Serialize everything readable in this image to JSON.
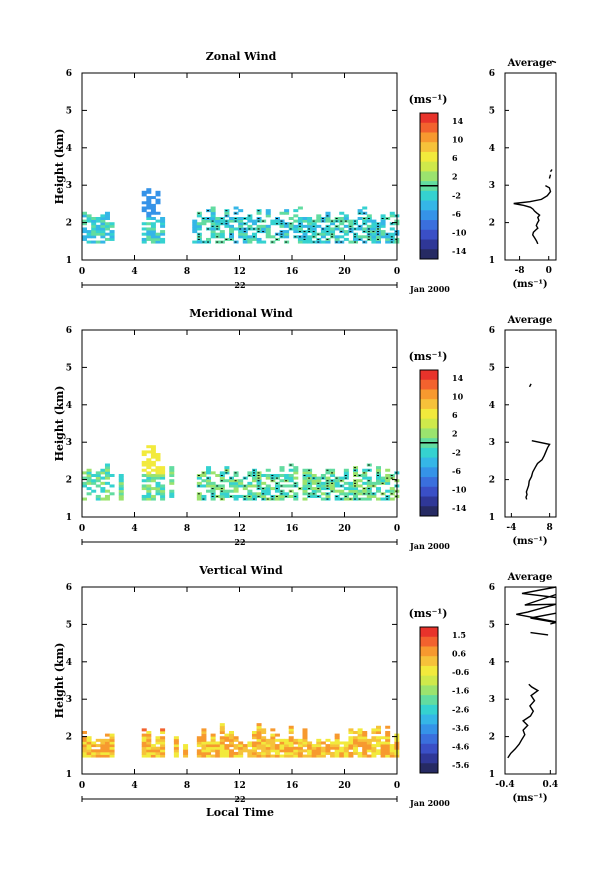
{
  "x_axis": {
    "ticks": [
      "0",
      "4",
      "8",
      "12",
      "16",
      "20",
      "0"
    ],
    "day_label": "22",
    "date_label": "Jan 2000",
    "xlabel": "Local Time"
  },
  "panels": [
    {
      "title": "Zonal Wind",
      "ylabel": "Height (km)",
      "y_ticks": [
        "1",
        "2",
        "3",
        "4",
        "5",
        "6"
      ],
      "colorbar": {
        "unit": "(ms⁻¹)",
        "labels": [
          "14",
          "10",
          "6",
          "2",
          "-2",
          "-6",
          "-10",
          "-14"
        ],
        "colors": [
          "#e8332b",
          "#f2622e",
          "#f7992f",
          "#f6c23a",
          "#f2ea3c",
          "#cfe94b",
          "#9be36e",
          "#62dca0",
          "#35d2d0",
          "#35b6e7",
          "#3593e8",
          "#3a6fdd",
          "#3a4fc6",
          "#2f3797",
          "#262a63"
        ],
        "white_at": 2.0
      },
      "profile": {
        "title": "Average",
        "xlabel": "(ms⁻¹)",
        "x_ticks": [
          "-8",
          "0"
        ],
        "xlim": [
          -12,
          2
        ],
        "lines": [
          [
            [
              -3.0,
              1.43
            ],
            [
              -3.3,
              1.5
            ],
            [
              -3.8,
              1.58
            ],
            [
              -4.4,
              1.67
            ],
            [
              -4.2,
              1.74
            ],
            [
              -3.6,
              1.8
            ],
            [
              -3.0,
              1.85
            ],
            [
              -3.4,
              1.92
            ],
            [
              -3.1,
              1.99
            ],
            [
              -2.7,
              2.06
            ],
            [
              -3.0,
              2.14
            ],
            [
              -2.5,
              2.2
            ],
            [
              -3.3,
              2.26
            ],
            [
              -3.9,
              2.31
            ],
            [
              -4.3,
              2.36
            ],
            [
              -5.0,
              2.41
            ],
            [
              -6.8,
              2.46
            ],
            [
              -9.6,
              2.51
            ],
            [
              -5.2,
              2.56
            ],
            [
              -2.0,
              2.62
            ],
            [
              -0.4,
              2.72
            ],
            [
              0.5,
              2.83
            ],
            [
              0.2,
              2.93
            ],
            [
              -0.9,
              2.99
            ]
          ],
          [
            [
              0.2,
              3.18
            ],
            [
              0.5,
              3.28
            ]
          ],
          [
            [
              0.5,
              3.36
            ],
            [
              0.9,
              3.42
            ]
          ],
          [
            [
              0.8,
              6.32
            ],
            [
              2.0,
              6.28
            ]
          ]
        ]
      }
    },
    {
      "title": "Meridional Wind",
      "ylabel": "Height (km)",
      "y_ticks": [
        "1",
        "2",
        "3",
        "4",
        "5",
        "6"
      ],
      "colorbar": {
        "unit": "(ms⁻¹)",
        "labels": [
          "14",
          "10",
          "6",
          "2",
          "-2",
          "-6",
          "-10",
          "-14"
        ],
        "colors": [
          "#e8332b",
          "#f2622e",
          "#f7992f",
          "#f6c23a",
          "#f2ea3c",
          "#cfe94b",
          "#9be36e",
          "#62dca0",
          "#35d2d0",
          "#35b6e7",
          "#3593e8",
          "#3a6fdd",
          "#3a4fc6",
          "#2f3797",
          "#262a63"
        ],
        "white_at": 2.0
      },
      "profile": {
        "title": "Average",
        "xlabel": "(ms⁻¹)",
        "x_ticks": [
          "-4",
          "8"
        ],
        "xlim": [
          -6,
          10
        ],
        "lines": [
          [
            [
              0.8,
              1.47
            ],
            [
              0.6,
              1.53
            ],
            [
              0.9,
              1.6
            ],
            [
              0.7,
              1.67
            ],
            [
              1.0,
              1.74
            ],
            [
              1.4,
              1.84
            ],
            [
              1.6,
              1.96
            ],
            [
              2.3,
              2.08
            ],
            [
              2.7,
              2.2
            ],
            [
              3.5,
              2.33
            ],
            [
              4.2,
              2.43
            ],
            [
              5.6,
              2.53
            ],
            [
              6.3,
              2.64
            ],
            [
              6.9,
              2.76
            ],
            [
              7.4,
              2.86
            ],
            [
              8.0,
              2.94
            ],
            [
              2.4,
              3.04
            ]
          ],
          [
            [
              1.7,
              4.48
            ],
            [
              2.2,
              4.56
            ]
          ]
        ]
      }
    },
    {
      "title": "Vertical Wind",
      "ylabel": "Height (km)",
      "y_ticks": [
        "1",
        "2",
        "3",
        "4",
        "5",
        "6"
      ],
      "colorbar": {
        "unit": "(ms⁻¹)",
        "labels": [
          "1.5",
          "0.6",
          "-0.6",
          "-1.6",
          "-2.6",
          "-3.6",
          "-4.6",
          "-5.6"
        ],
        "colors": [
          "#e8332b",
          "#f2622e",
          "#f7992f",
          "#f6c23a",
          "#f2ea3c",
          "#cfe94b",
          "#9be36e",
          "#62dca0",
          "#35d2d0",
          "#35b6e7",
          "#3593e8",
          "#3a6fdd",
          "#3a4fc6",
          "#2f3797",
          "#262a63"
        ],
        "white_at": -99
      },
      "profile": {
        "title": "Average",
        "xlabel": "(ms⁻¹)",
        "x_ticks": [
          "-0.4",
          "0.4"
        ],
        "xlim": [
          -0.4,
          0.5
        ],
        "lines": [
          [
            [
              -0.35,
              1.43
            ],
            [
              -0.3,
              1.55
            ],
            [
              -0.22,
              1.67
            ],
            [
              -0.15,
              1.8
            ],
            [
              -0.1,
              1.93
            ],
            [
              -0.05,
              2.05
            ],
            [
              -0.08,
              2.17
            ],
            [
              0.0,
              2.3
            ],
            [
              -0.08,
              2.42
            ],
            [
              0.05,
              2.55
            ],
            [
              0.1,
              2.68
            ],
            [
              0.04,
              2.82
            ],
            [
              0.12,
              2.96
            ],
            [
              0.06,
              3.1
            ],
            [
              0.18,
              3.23
            ],
            [
              0.07,
              3.33
            ],
            [
              0.02,
              3.4
            ]
          ],
          [
            [
              0.5,
              5.3
            ],
            [
              0.05,
              5.17
            ],
            [
              0.5,
              5.05
            ],
            [
              0.4,
              5.01
            ]
          ],
          [
            [
              0.5,
              5.8
            ],
            [
              -0.05,
              5.52
            ],
            [
              0.5,
              5.54
            ],
            [
              0.0,
              5.33
            ],
            [
              -0.2,
              5.27
            ],
            [
              0.5,
              5.07
            ]
          ],
          [
            [
              0.05,
              4.78
            ],
            [
              0.36,
              4.72
            ]
          ],
          [
            [
              0.5,
              6.0
            ],
            [
              -0.1,
              5.83
            ],
            [
              0.5,
              5.72
            ]
          ]
        ]
      }
    }
  ]
}
